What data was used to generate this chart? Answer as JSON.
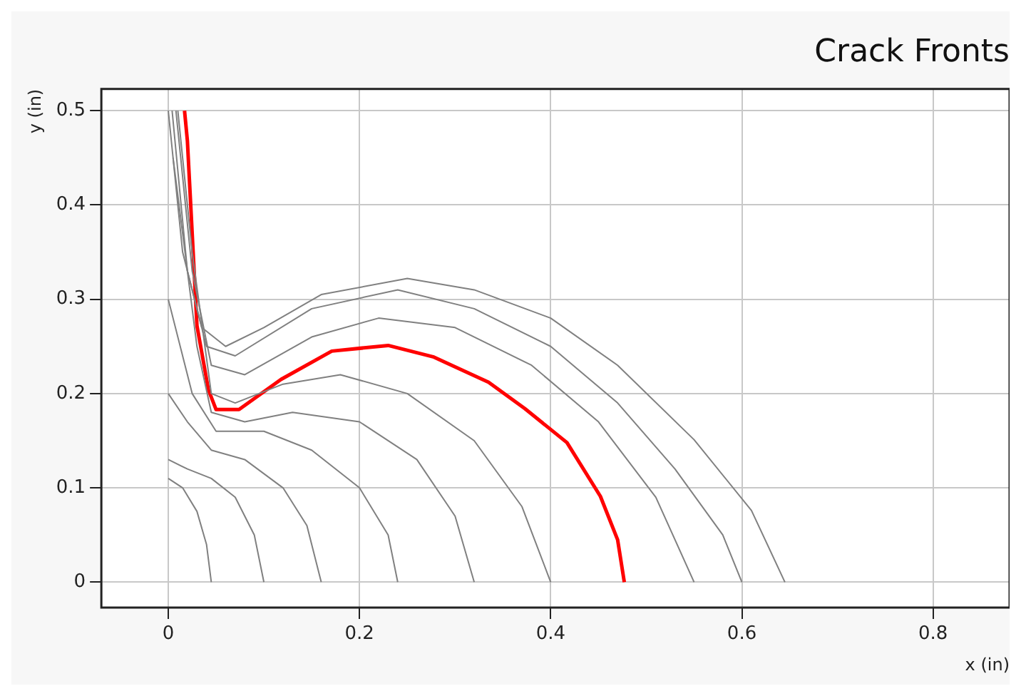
{
  "chart_data": {
    "type": "line",
    "title": "Crack Fronts",
    "xlabel": "x (in)",
    "ylabel": "y (in)",
    "xlim": [
      -0.07,
      0.88
    ],
    "ylim": [
      -0.027,
      0.523
    ],
    "xticks": [
      0,
      0.2,
      0.4,
      0.6,
      0.8
    ],
    "yticks": [
      0,
      0.1,
      0.2,
      0.3,
      0.4,
      0.5
    ],
    "grid": true,
    "series": [
      {
        "color": "#808080",
        "x": [
          0,
          0.015,
          0.03,
          0.04,
          0.045
        ],
        "values": [
          0.11,
          0.1,
          0.075,
          0.04,
          0
        ]
      },
      {
        "color": "#808080",
        "x": [
          0,
          0.02,
          0.045,
          0.07,
          0.09,
          0.1
        ],
        "values": [
          0.13,
          0.12,
          0.11,
          0.09,
          0.05,
          0
        ]
      },
      {
        "color": "#808080",
        "x": [
          0,
          0.02,
          0.045,
          0.08,
          0.12,
          0.145,
          0.16
        ],
        "values": [
          0.2,
          0.17,
          0.14,
          0.13,
          0.1,
          0.06,
          0
        ]
      },
      {
        "color": "#808080",
        "x": [
          0,
          0.025,
          0.05,
          0.1,
          0.15,
          0.2,
          0.23,
          0.24
        ],
        "values": [
          0.3,
          0.2,
          0.16,
          0.16,
          0.14,
          0.1,
          0.05,
          0
        ]
      },
      {
        "color": "#808080",
        "x": [
          0.005,
          0.03,
          0.045,
          0.08,
          0.13,
          0.2,
          0.26,
          0.3,
          0.32
        ],
        "values": [
          0.45,
          0.25,
          0.18,
          0.17,
          0.18,
          0.17,
          0.13,
          0.07,
          0
        ]
      },
      {
        "color": "#808080",
        "x": [
          0.01,
          0.025,
          0.045,
          0.07,
          0.12,
          0.18,
          0.25,
          0.32,
          0.37,
          0.4
        ],
        "values": [
          0.5,
          0.35,
          0.2,
          0.19,
          0.21,
          0.22,
          0.2,
          0.15,
          0.08,
          0
        ]
      },
      {
        "color": "#808080",
        "x": [
          0.008,
          0.025,
          0.045,
          0.08,
          0.15,
          0.22,
          0.3,
          0.38,
          0.45,
          0.51,
          0.55
        ],
        "values": [
          0.5,
          0.33,
          0.23,
          0.22,
          0.26,
          0.28,
          0.27,
          0.23,
          0.17,
          0.09,
          0
        ]
      },
      {
        "color": "#808080",
        "x": [
          0.004,
          0.02,
          0.04,
          0.07,
          0.15,
          0.24,
          0.32,
          0.4,
          0.47,
          0.53,
          0.58,
          0.6
        ],
        "values": [
          0.5,
          0.33,
          0.25,
          0.24,
          0.29,
          0.31,
          0.29,
          0.25,
          0.19,
          0.12,
          0.05,
          0
        ]
      },
      {
        "color": "#808080",
        "x": [
          0,
          0.015,
          0.035,
          0.06,
          0.1,
          0.16,
          0.25,
          0.32,
          0.4,
          0.47,
          0.55,
          0.61,
          0.645
        ],
        "values": [
          0.5,
          0.35,
          0.27,
          0.25,
          0.27,
          0.305,
          0.322,
          0.31,
          0.28,
          0.23,
          0.151,
          0.076,
          0
        ]
      },
      {
        "color": "#ff0000",
        "x": [
          0.017,
          0.02,
          0.03,
          0.042,
          0.05,
          0.074,
          0.118,
          0.171,
          0.23,
          0.277,
          0.335,
          0.373,
          0.417,
          0.452,
          0.47,
          0.477
        ],
        "values": [
          0.5,
          0.468,
          0.272,
          0.204,
          0.183,
          0.183,
          0.215,
          0.245,
          0.251,
          0.239,
          0.212,
          0.184,
          0.148,
          0.091,
          0.045,
          0
        ]
      }
    ]
  }
}
